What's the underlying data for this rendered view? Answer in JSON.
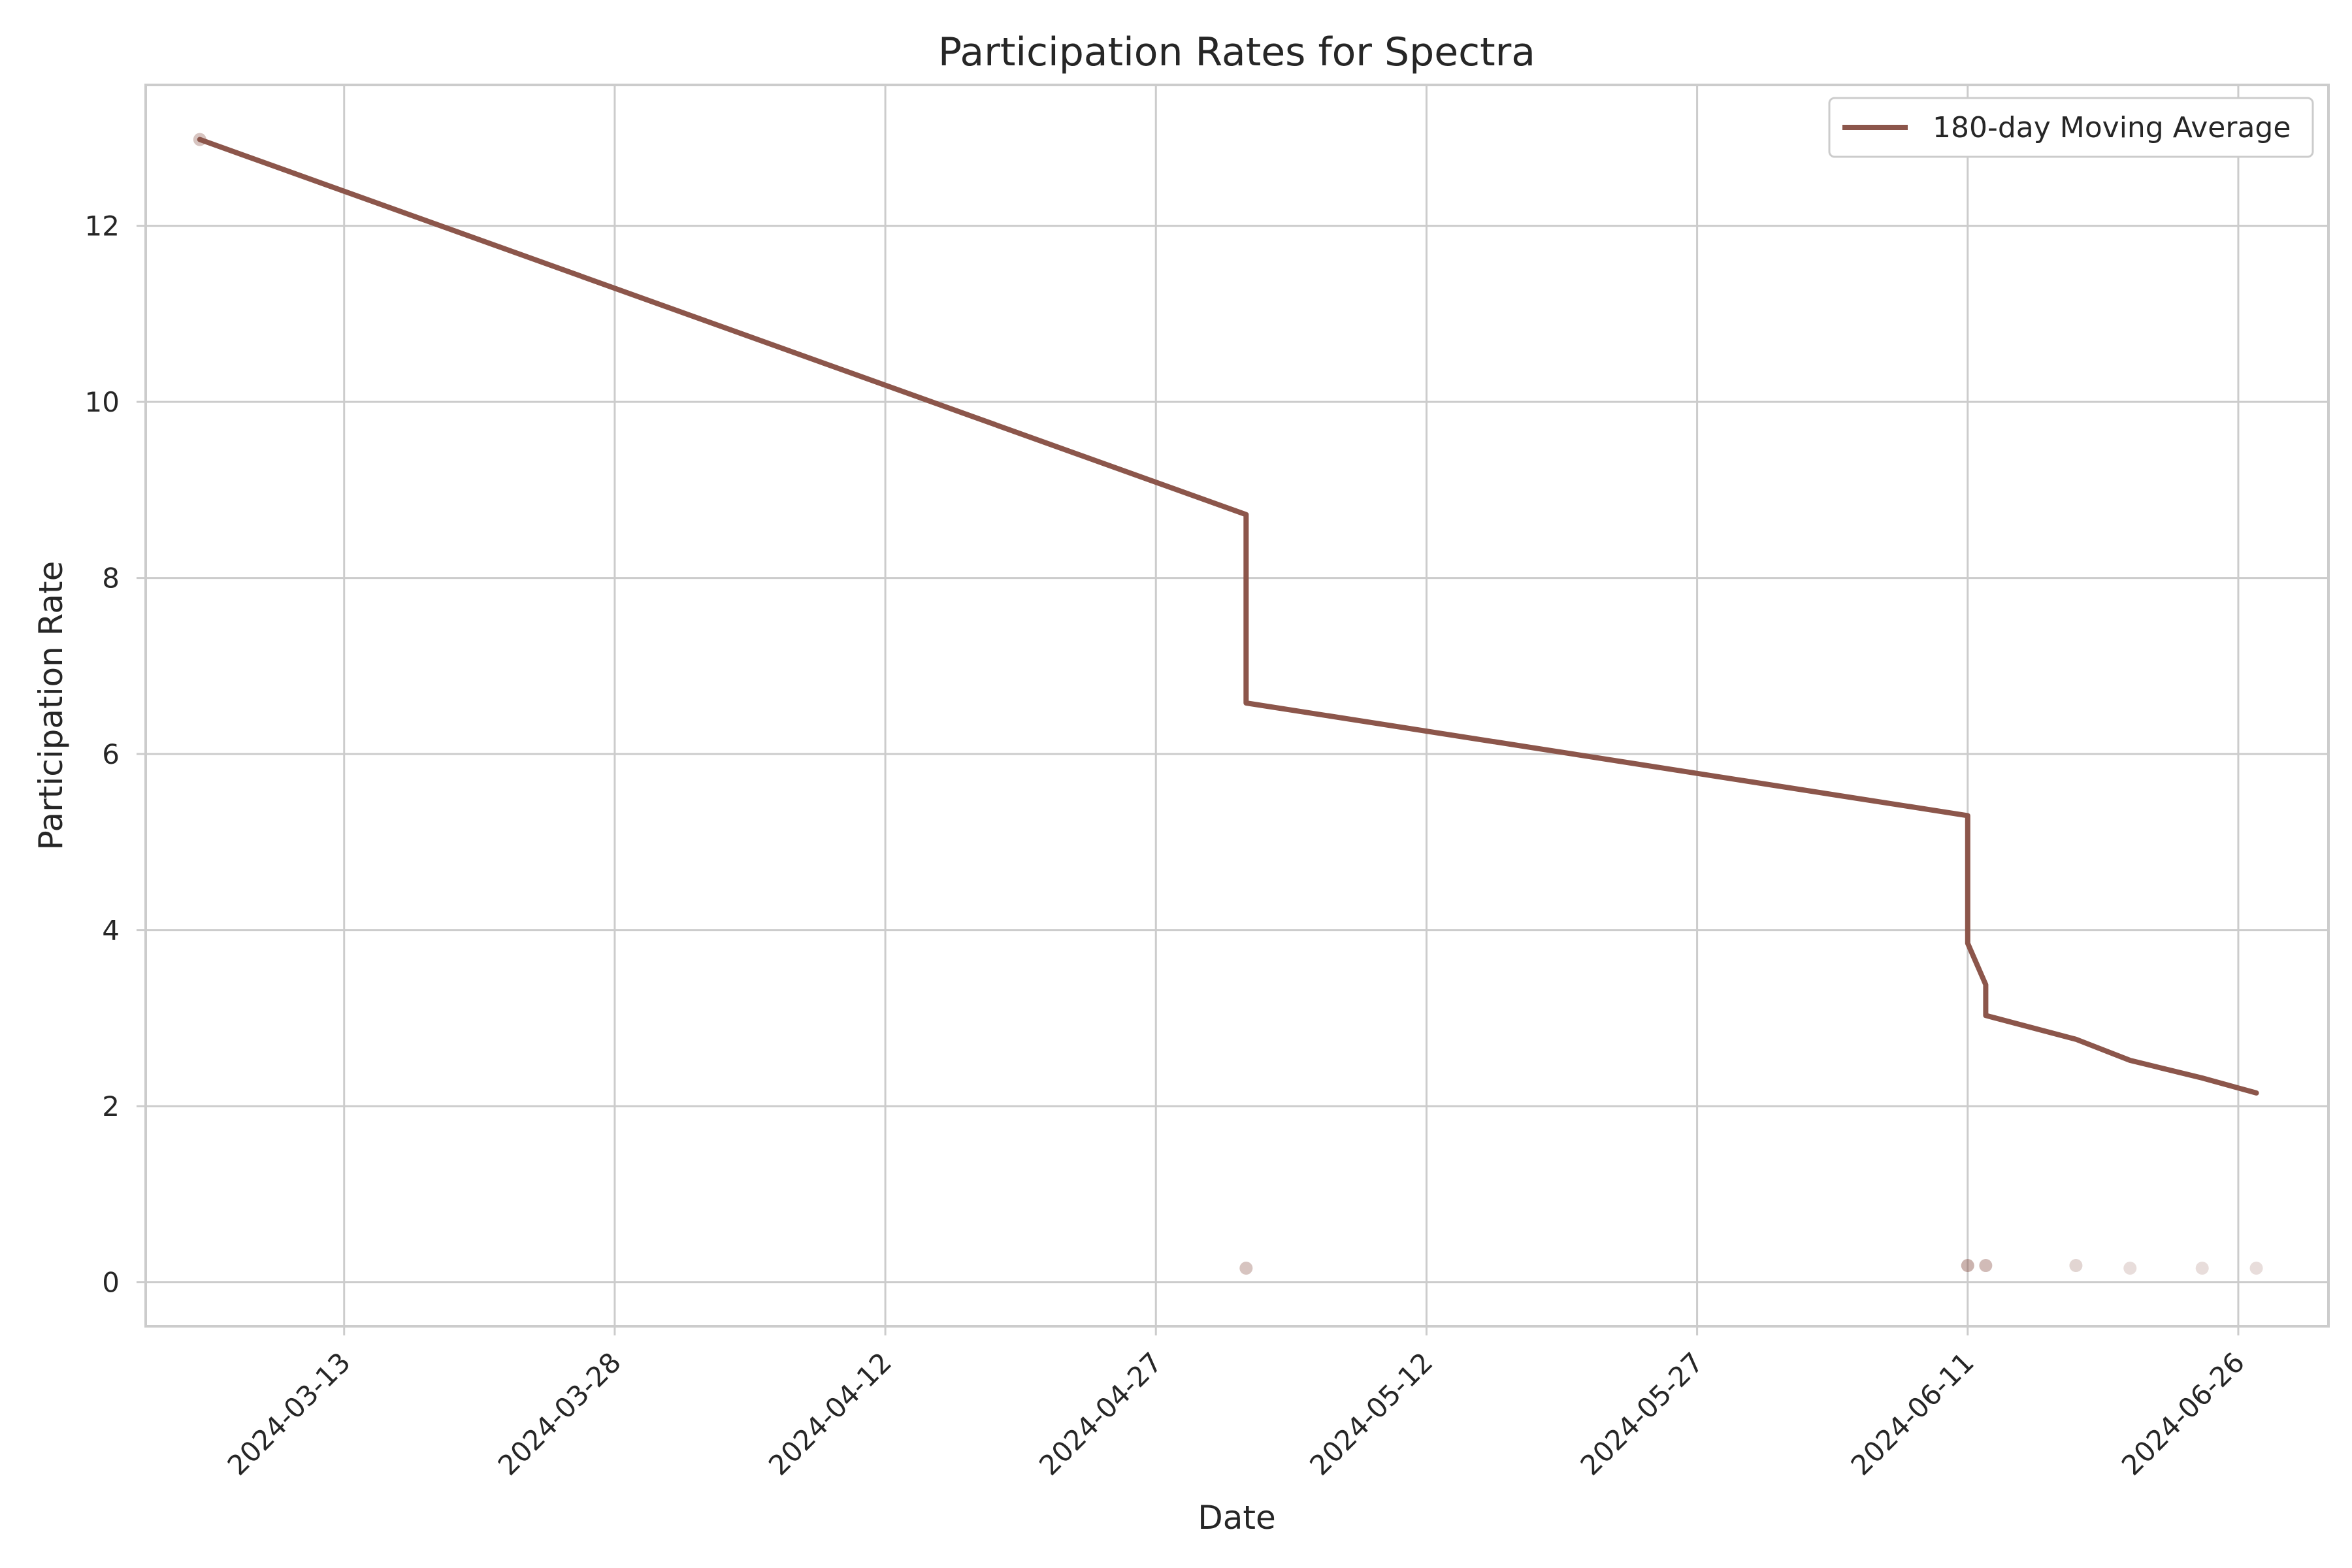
{
  "chart_data": {
    "type": "line",
    "title": "Participation Rates for Spectra",
    "xlabel": "Date",
    "ylabel": "Participation Rate",
    "xlim": [
      "2024-03-02",
      "2024-07-01"
    ],
    "ylim": [
      -0.5,
      13.6
    ],
    "x_ticks": [
      "2024-03-13",
      "2024-03-28",
      "2024-04-12",
      "2024-04-27",
      "2024-05-12",
      "2024-05-27",
      "2024-06-11",
      "2024-06-26"
    ],
    "y_ticks": [
      0,
      2,
      4,
      6,
      8,
      10,
      12
    ],
    "grid": true,
    "legend_position": "top-right",
    "series": [
      {
        "name": "180-day Moving Average",
        "color": "#8c564b",
        "x": [
          "2024-03-05",
          "2024-05-02",
          "2024-05-02",
          "2024-06-11",
          "2024-06-11",
          "2024-06-12",
          "2024-06-12",
          "2024-06-17",
          "2024-06-20",
          "2024-06-24",
          "2024-06-27"
        ],
        "y": [
          12.98,
          8.72,
          6.58,
          5.3,
          3.85,
          3.38,
          3.03,
          2.76,
          2.52,
          2.32,
          2.15
        ]
      }
    ],
    "points": {
      "color": "#8c564b",
      "x": [
        "2024-03-05",
        "2024-05-02",
        "2024-06-11",
        "2024-06-12",
        "2024-06-17",
        "2024-06-20",
        "2024-06-24",
        "2024-06-27"
      ],
      "y": [
        12.98,
        0.16,
        0.19,
        0.19,
        0.19,
        0.16,
        0.16,
        0.16
      ],
      "opacity": [
        0.35,
        0.35,
        0.45,
        0.4,
        0.25,
        0.2,
        0.2,
        0.2
      ]
    }
  }
}
